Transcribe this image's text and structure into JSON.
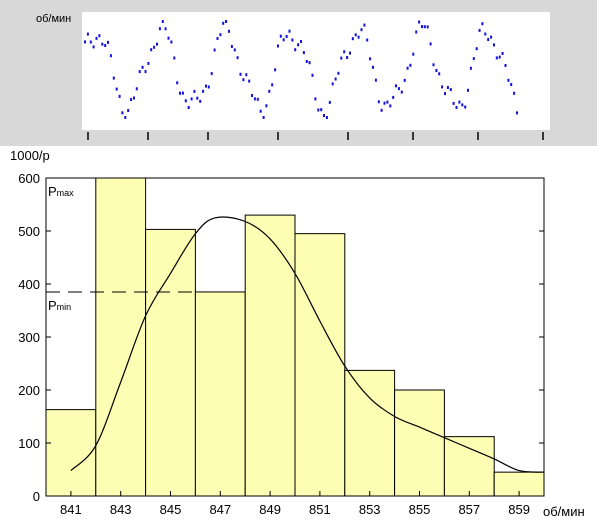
{
  "top_chart": {
    "ylabel": "об/мин",
    "ytick_labels": [
      "",
      "",
      ""
    ],
    "point_color": "#1010e0",
    "background": "#d8d8d8"
  },
  "chart_data": {
    "type": "bar",
    "categories": [
      "841",
      "843",
      "845",
      "847",
      "849",
      "851",
      "853",
      "855",
      "857",
      "859"
    ],
    "values": [
      163,
      600,
      503,
      385,
      530,
      495,
      237,
      200,
      112,
      45
    ],
    "ylabel": "1000/р",
    "xlabel": "об/мин",
    "ylim": [
      0,
      600
    ],
    "yticks": [
      0,
      100,
      200,
      300,
      400,
      500,
      600
    ],
    "bar_color": "#fdfdb3",
    "curve": {
      "x": [
        841,
        842,
        843,
        844,
        845,
        846,
        846.8,
        848,
        849,
        850,
        851,
        852,
        853,
        854,
        855,
        856,
        857,
        858,
        859,
        860
      ],
      "y": [
        48,
        95,
        215,
        340,
        420,
        495,
        525,
        518,
        485,
        420,
        330,
        245,
        185,
        150,
        130,
        110,
        90,
        70,
        48,
        45
      ]
    },
    "annotations": [
      {
        "label_main": "P",
        "label_sub": "max",
        "value": 600
      },
      {
        "label_main": "P",
        "label_sub": "min",
        "value": 385,
        "dashed": true
      }
    ]
  }
}
